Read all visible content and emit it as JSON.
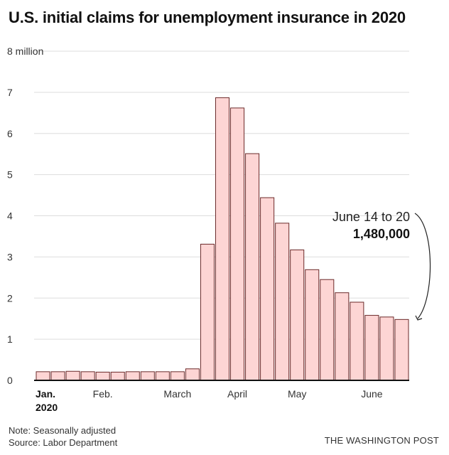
{
  "chart_data": {
    "type": "bar",
    "title": "U.S. initial claims for unemployment insurance in 2020",
    "unit_label": "8 million",
    "y_ticks": [
      "0",
      "1",
      "2",
      "3",
      "4",
      "5",
      "6",
      "7",
      "8 million"
    ],
    "ylim": [
      0,
      8
    ],
    "grid": true,
    "x_labels": [
      {
        "label": "Jan.",
        "sublabel": "2020",
        "week": 0
      },
      {
        "label": "Feb.",
        "week": 4
      },
      {
        "label": "March",
        "week": 9
      },
      {
        "label": "April",
        "week": 13
      },
      {
        "label": "May",
        "week": 17
      },
      {
        "label": "June",
        "week": 22
      }
    ],
    "values": [
      0.21,
      0.21,
      0.22,
      0.21,
      0.2,
      0.2,
      0.21,
      0.21,
      0.21,
      0.21,
      0.28,
      3.31,
      6.87,
      6.62,
      5.51,
      4.44,
      3.82,
      3.17,
      2.69,
      2.45,
      2.13,
      1.9,
      1.58,
      1.54,
      1.48
    ],
    "annotation": {
      "line1": "June 14 to 20",
      "line2": "1,480,000",
      "target_index": 24
    }
  },
  "notes": {
    "note": "Note: Seasonally adjusted",
    "source": "Source: Labor Department"
  },
  "credit": "THE WASHINGTON POST",
  "colors": {
    "bar_fill": "#fdd5d4",
    "bar_stroke": "#6b2a2a",
    "grid": "#dddddd",
    "axis": "#111111"
  }
}
